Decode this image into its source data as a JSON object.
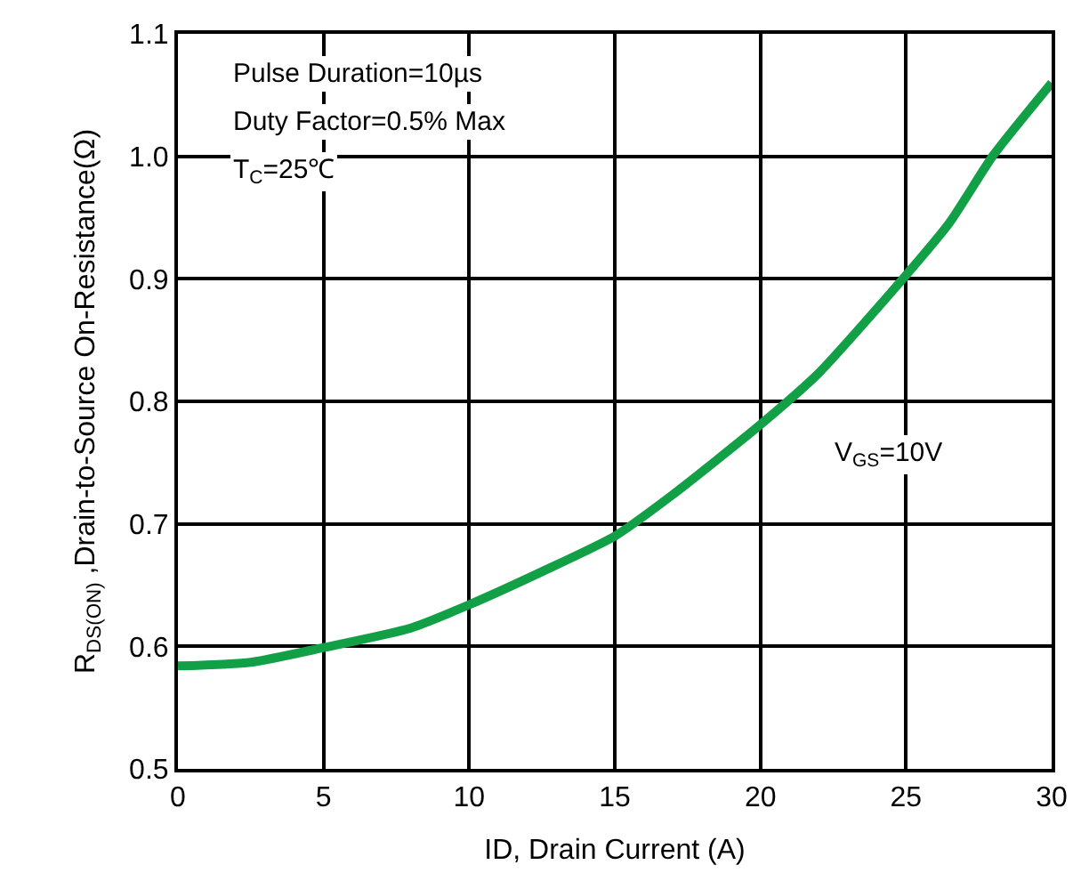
{
  "chart_data": {
    "type": "line",
    "xlabel": "ID, Drain Current (A)",
    "ylabel": "R$_{DS(ON)}$ ,Drain-to-Source On-Resistance(Ω)",
    "x": [
      0,
      2.5,
      5,
      8,
      10,
      12.5,
      15,
      17,
      20,
      22,
      25,
      26.5,
      28,
      30
    ],
    "series": [
      {
        "name": "V$_{GS}$=10V",
        "color": "#12a047",
        "values": [
          0.584,
          0.587,
          0.599,
          0.615,
          0.634,
          0.661,
          0.69,
          0.724,
          0.781,
          0.823,
          0.903,
          0.946,
          1.001,
          1.06
        ]
      }
    ],
    "annotations": [
      "Pulse Duration=10µs",
      "Duty Factor=0.5% Max",
      "T$_{C}$=25℃"
    ],
    "xlim": [
      0,
      30
    ],
    "xticks": [
      0,
      5,
      10,
      15,
      20,
      25,
      30
    ],
    "ylim": [
      0.5,
      1.1
    ],
    "yticks": [
      0.5,
      0.6,
      0.7,
      0.8,
      0.9,
      {
        "value": 1,
        "label": "1.0"
      },
      1.1
    ],
    "grid": true,
    "legend": false,
    "marker": "none",
    "line_style": "solid"
  }
}
